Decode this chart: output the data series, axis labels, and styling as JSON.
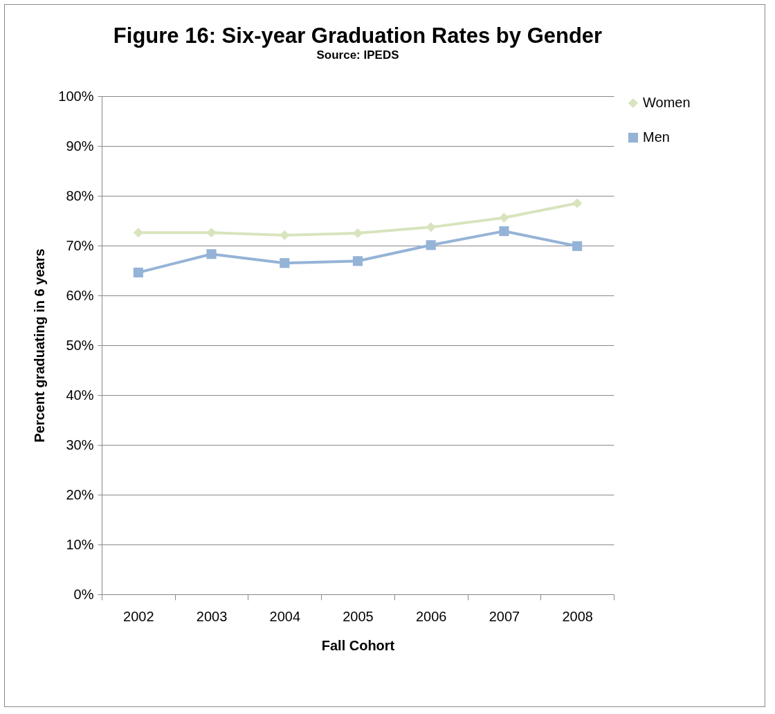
{
  "chart_data": {
    "type": "line",
    "title": "Figure 16: Six-year Graduation Rates by Gender",
    "subtitle": "Source:  IPEDS",
    "xlabel": "Fall Cohort",
    "ylabel": "Percent graduating in 6 years",
    "categories": [
      "2002",
      "2003",
      "2004",
      "2005",
      "2006",
      "2007",
      "2008"
    ],
    "series": [
      {
        "name": "Women",
        "color": "#d7e4bd",
        "marker": "diamond",
        "values": [
          72.6,
          72.6,
          72.1,
          72.5,
          73.7,
          75.6,
          78.5
        ]
      },
      {
        "name": "Men",
        "color": "#95b3d7",
        "marker": "square",
        "values": [
          64.6,
          68.3,
          66.5,
          66.9,
          70.1,
          72.9,
          69.9
        ]
      }
    ],
    "ylim": [
      0,
      100
    ],
    "yticks": [
      {
        "value": 0,
        "label": "0%"
      },
      {
        "value": 10,
        "label": "10%"
      },
      {
        "value": 20,
        "label": "20%"
      },
      {
        "value": 30,
        "label": "30%"
      },
      {
        "value": 40,
        "label": "40%"
      },
      {
        "value": 50,
        "label": "50%"
      },
      {
        "value": 60,
        "label": "60%"
      },
      {
        "value": 70,
        "label": "70%"
      },
      {
        "value": 80,
        "label": "80%"
      },
      {
        "value": 90,
        "label": "90%"
      },
      {
        "value": 100,
        "label": "100%"
      }
    ],
    "grid": "y",
    "legend": "right",
    "line_style": "solid"
  }
}
